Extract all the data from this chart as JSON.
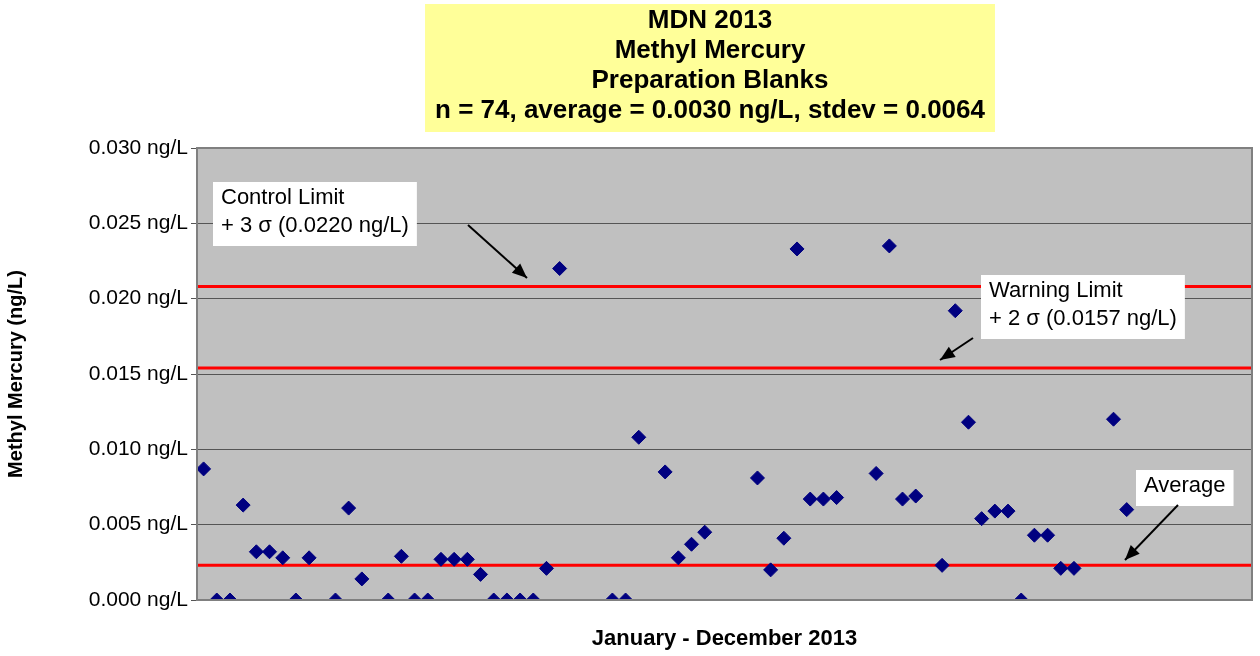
{
  "chart_data": {
    "type": "scatter",
    "title": "MDN 2013\nMethyl Mercury\nPreparation Blanks",
    "subtitle": "n = 74, average = 0.0030 ng/L, stdev = 0.0064",
    "xlabel": "January - December 2013",
    "ylabel": "Methyl Mercury (ng/L)",
    "categories": [
      null,
      null,
      null,
      null,
      null,
      null,
      null,
      null,
      null,
      null,
      null,
      null,
      null,
      null,
      null,
      null,
      null,
      null,
      null,
      null,
      null,
      null,
      null,
      null,
      null,
      null,
      null,
      null,
      null,
      null,
      null,
      null,
      null,
      null,
      null,
      null,
      null,
      null,
      null,
      null,
      null,
      null,
      null,
      null,
      null,
      null,
      null,
      null,
      null,
      null,
      null,
      null,
      null,
      null,
      null,
      null,
      null,
      null,
      null,
      null,
      null,
      null,
      null,
      null,
      null,
      null,
      null,
      null,
      null,
      null,
      null,
      null,
      null,
      null,
      null,
      null,
      null,
      null,
      null,
      null
    ],
    "series": [
      {
        "color": "#000080",
        "values": [
          0.0087,
          0,
          0,
          0.0063,
          0.0032,
          0.0032,
          0.0028,
          0,
          0.0028,
          null,
          0,
          0.0061,
          0.0014,
          null,
          0,
          0.0029,
          0,
          0,
          0.0027,
          0.0027,
          0.0027,
          0.0017,
          0,
          0,
          0,
          0,
          0.0021,
          0.022,
          null,
          null,
          null,
          0,
          0,
          0.0108,
          null,
          0.0085,
          0.0028,
          0.0037,
          0.0045,
          null,
          null,
          null,
          0.0081,
          0.002,
          0.0041,
          0.0233,
          0.0067,
          0.0067,
          0.0068,
          null,
          null,
          0.0084,
          0.0235,
          0.0067,
          0.0069,
          null,
          0.0023,
          0.0192,
          0.0118,
          0.0054,
          0.0059,
          0.0059,
          0,
          0.0043,
          0.0043,
          0.0021,
          0.0021,
          null,
          null,
          0.012,
          0.006,
          null,
          null,
          null,
          null,
          null,
          null,
          null,
          null,
          null
        ]
      }
    ],
    "ylim": [
      0,
      0.03
    ],
    "yticks": [
      {
        "value": 0,
        "label": "0.000 ng/L"
      },
      {
        "value": 0.005,
        "label": "0.005 ng/L"
      },
      {
        "value": 0.01,
        "label": "0.010 ng/L"
      },
      {
        "value": 0.015,
        "label": "0.015 ng/L"
      },
      {
        "value": 0.02,
        "label": "0.020 ng/L"
      },
      {
        "value": 0.025,
        "label": "0.025 ng/L"
      },
      {
        "value": 0.03,
        "label": "0.030 ng/L"
      }
    ],
    "grid": "y",
    "legend": false,
    "marker": "diamond",
    "tick_labels": "y",
    "ref_lines": [
      {
        "axis": "y",
        "value": 0.0208,
        "label": "Control Limit\n+ 3 σ (0.0220 ng/L)",
        "color": "#ff0000"
      },
      {
        "axis": "y",
        "value": 0.0154,
        "label": "Warning Limit\n+ 2 σ (0.0157 ng/L)",
        "color": "#ff0000"
      },
      {
        "axis": "y",
        "value": 0.0023,
        "label": "Average",
        "color": "#ff0000"
      }
    ]
  }
}
